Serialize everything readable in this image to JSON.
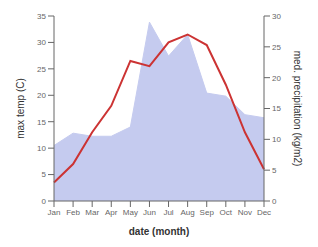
{
  "chart_data": {
    "type": "line",
    "categories": [
      "Jan",
      "Feb",
      "Mar",
      "Apr",
      "May",
      "Jun",
      "Jul",
      "Aug",
      "Sep",
      "Oct",
      "Nov",
      "Dec"
    ],
    "series": [
      {
        "type": "area",
        "axis": "y2",
        "color": "#c5cbef",
        "values": [
          9.0,
          11.0,
          10.5,
          10.5,
          12.0,
          29.0,
          23.5,
          27.0,
          17.5,
          17.0,
          14.0,
          13.5
        ]
      },
      {
        "type": "line",
        "color": "#cc3333",
        "values": [
          3.5,
          7.0,
          13.0,
          18.0,
          26.5,
          25.5,
          30.0,
          31.5,
          29.5,
          22.0,
          13.0,
          6.0
        ]
      }
    ],
    "ylim": [
      0,
      35
    ],
    "yticks": [
      0,
      5,
      10,
      15,
      20,
      25,
      30,
      35
    ],
    "y2lim": [
      0,
      30
    ],
    "y2ticks": [
      0,
      5,
      10,
      15,
      20,
      25,
      30
    ],
    "xlabel": "date (month)",
    "ylabel": "max temp (C)",
    "y2label": "med. precipitation (kg/m2)"
  }
}
